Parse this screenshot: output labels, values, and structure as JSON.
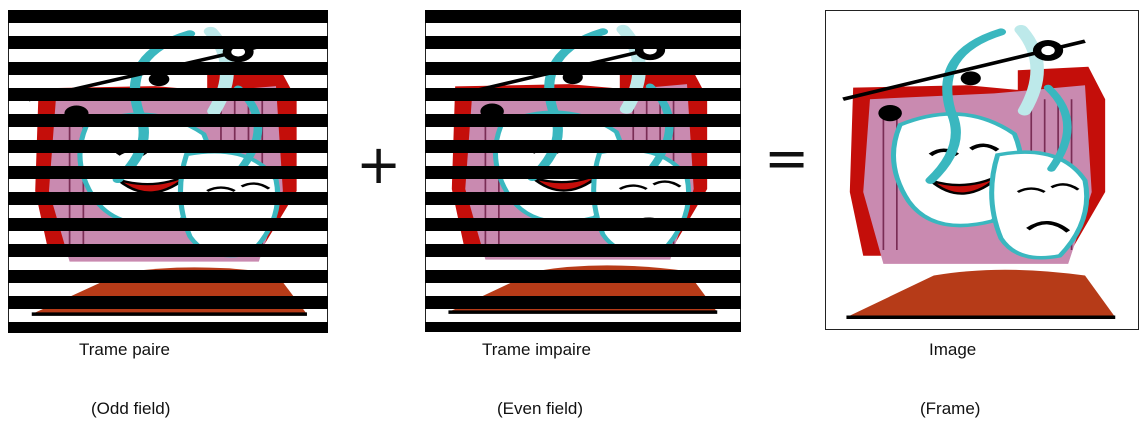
{
  "diagram": {
    "panels": [
      {
        "id": "odd",
        "caption": "Trame paire",
        "subcaption": "(Odd field)",
        "striping": "odd"
      },
      {
        "id": "even",
        "caption": "Trame impaire",
        "subcaption": "(Even field)",
        "striping": "even"
      },
      {
        "id": "frame",
        "caption": "Image",
        "subcaption": "(Frame)",
        "striping": "none"
      }
    ],
    "operators": {
      "plus": "+",
      "equals": "="
    },
    "colors": {
      "stripe": "#000000",
      "curtain": "#c40e0a",
      "mask_bg": "#c98ab0",
      "cyan": "#3ab7bf",
      "light_cyan": "#bde9ea",
      "floor": "#b63b18",
      "border": "#222222"
    }
  }
}
